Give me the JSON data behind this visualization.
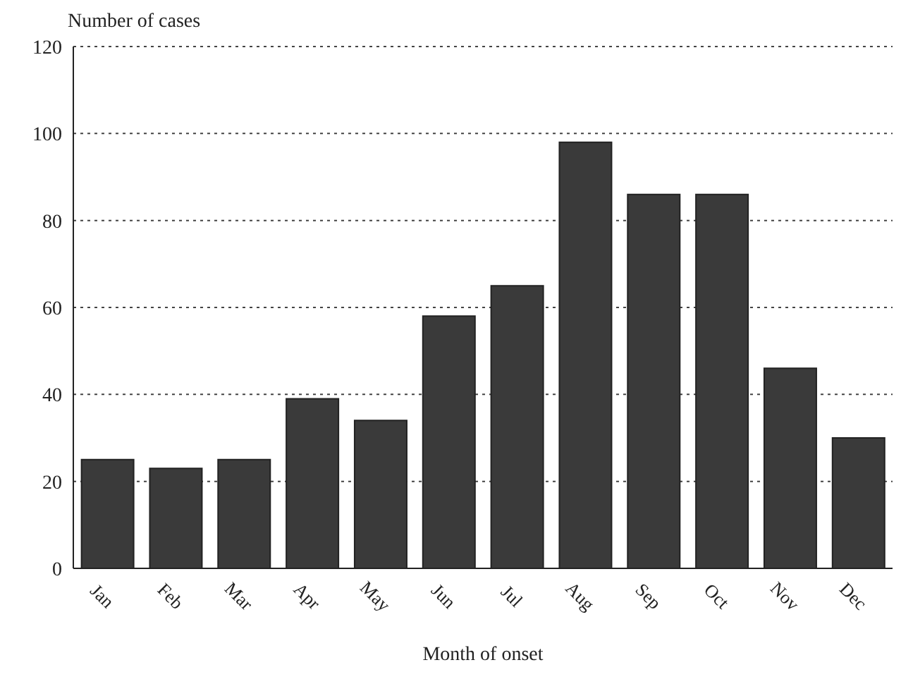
{
  "chart_data": {
    "type": "bar",
    "ylabel": "Number of cases",
    "xlabel": "Month of onset",
    "categories": [
      "Jan",
      "Feb",
      "Mar",
      "Apr",
      "May",
      "Jun",
      "Jul",
      "Aug",
      "Sep",
      "Oct",
      "Nov",
      "Dec"
    ],
    "values": [
      25,
      23,
      25,
      39,
      34,
      58,
      65,
      98,
      86,
      86,
      46,
      30
    ],
    "color": "#3a3a3a",
    "ylim": [
      0,
      120
    ],
    "yticks": [
      0,
      20,
      40,
      60,
      80,
      100,
      120
    ],
    "grid": "y"
  }
}
